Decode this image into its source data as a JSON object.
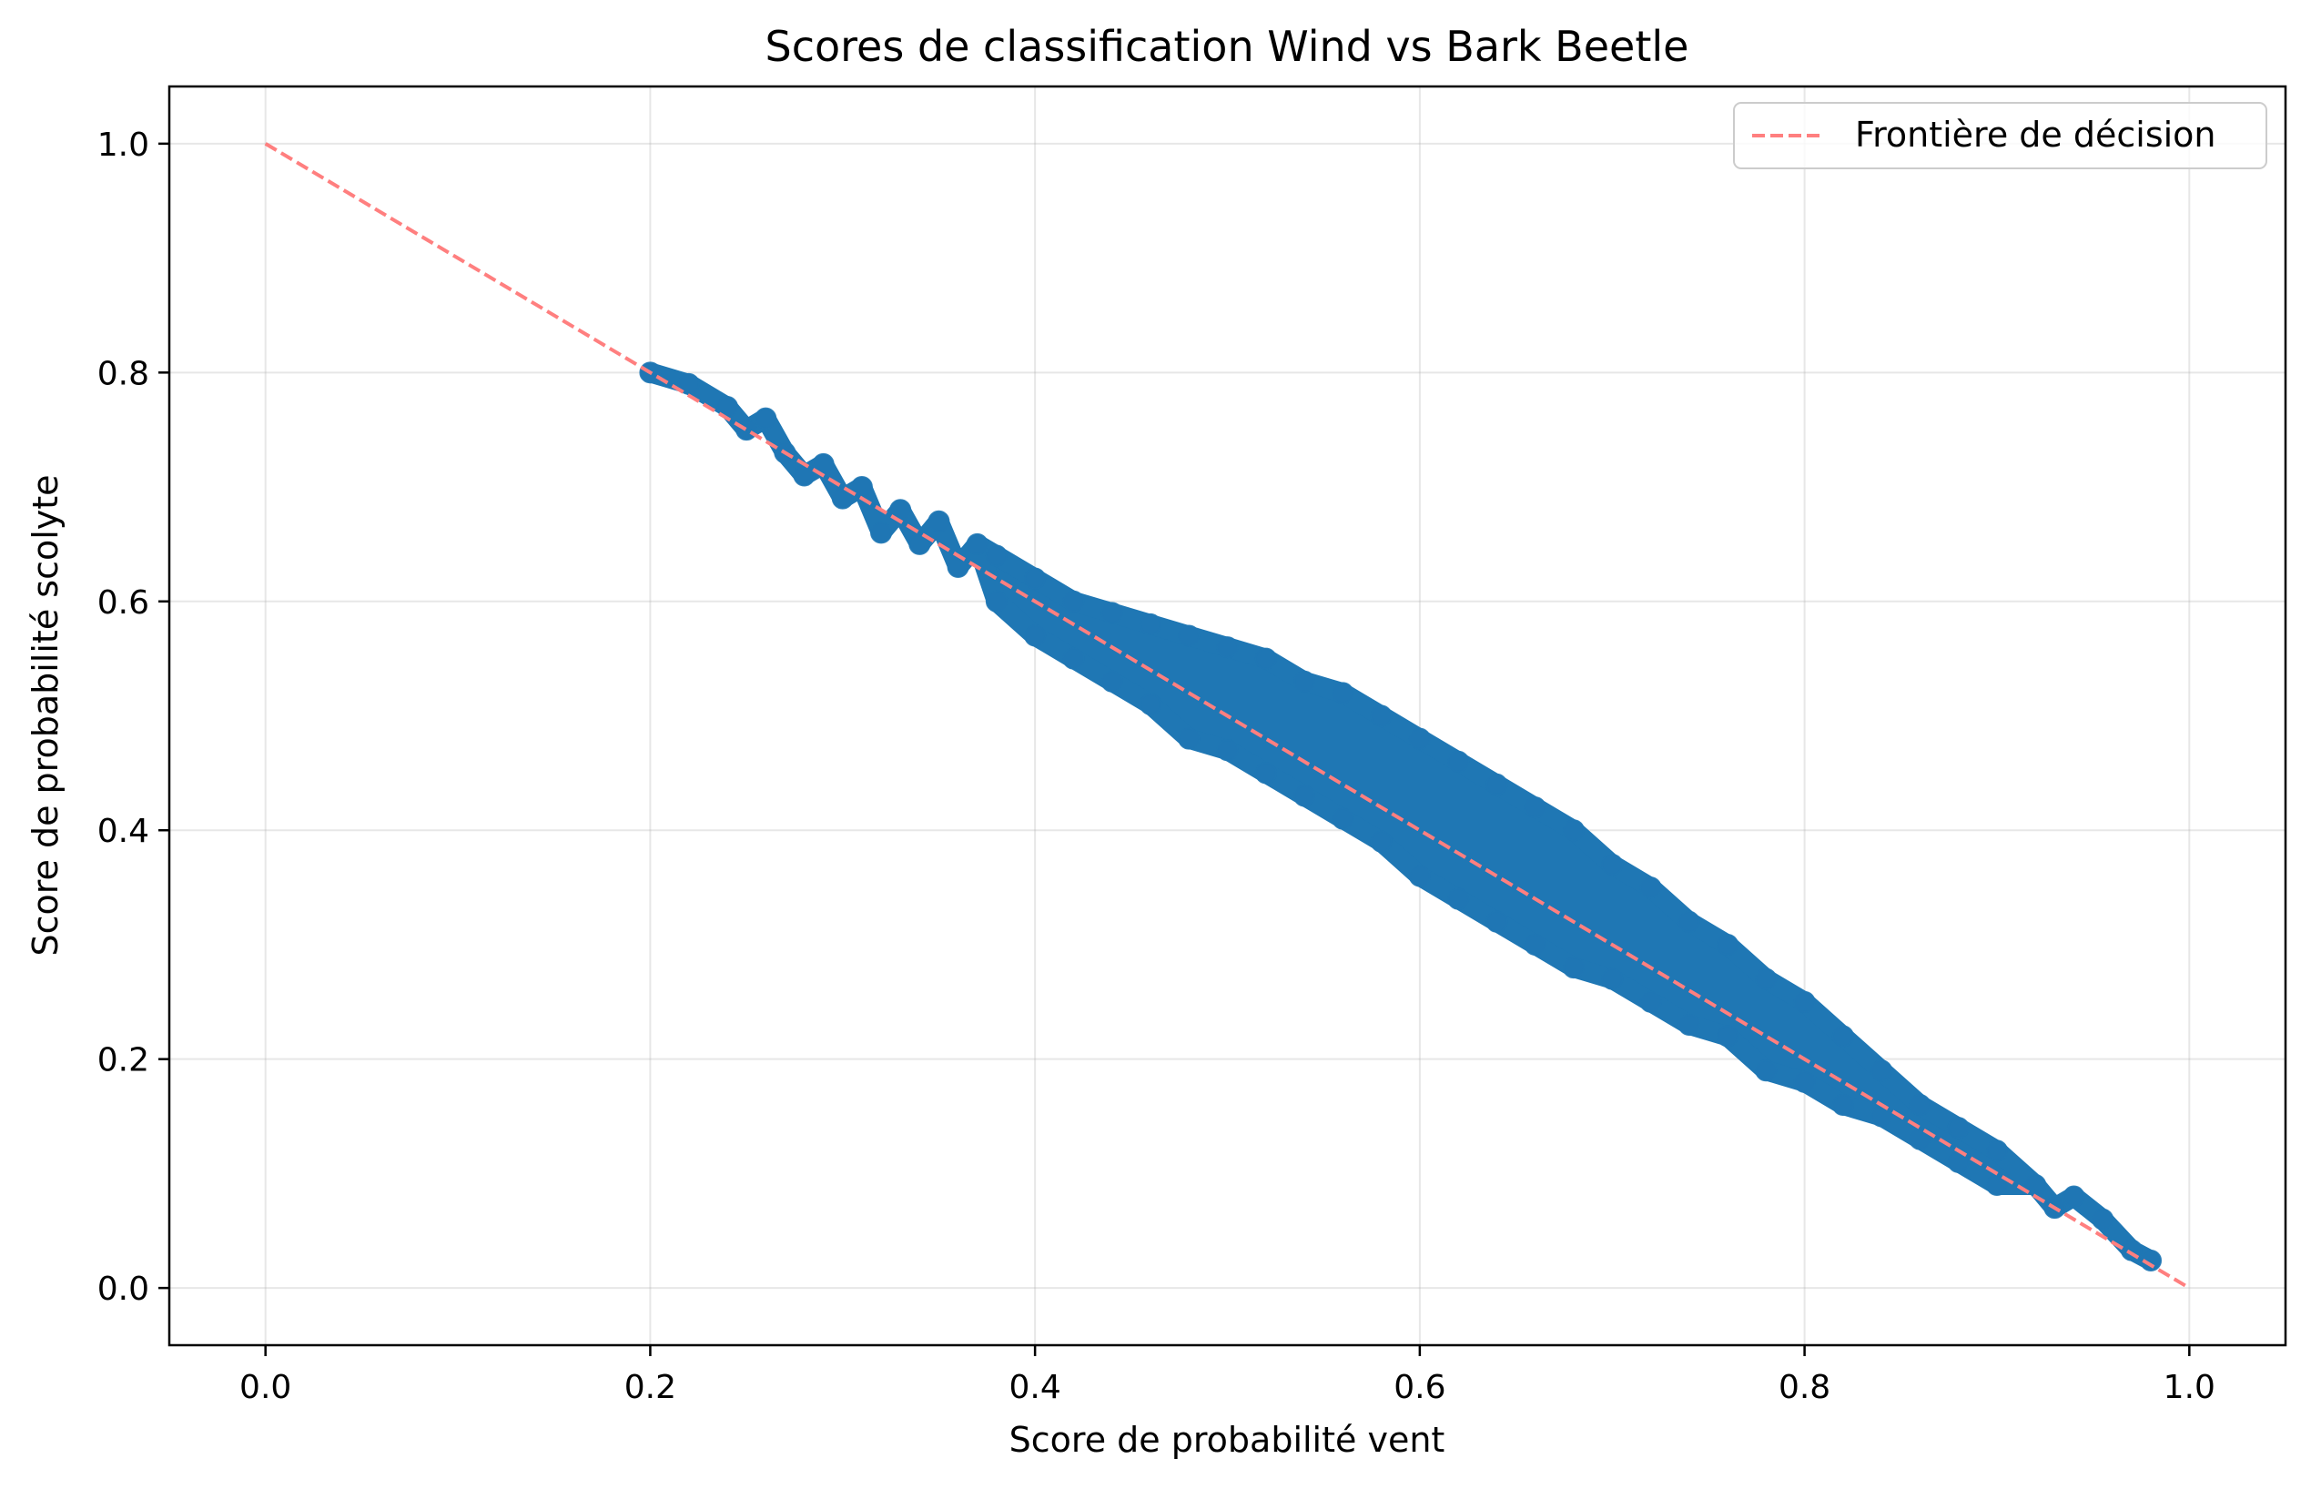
{
  "chart_data": {
    "type": "scatter",
    "title": "Scores de classification Wind vs Bark Beetle",
    "xlabel": "Score de probabilité vent",
    "ylabel": "Score de probabilité scolyte",
    "xlim": [
      -0.05,
      1.05
    ],
    "ylim": [
      -0.05,
      1.05
    ],
    "xticks": [
      0.0,
      0.2,
      0.4,
      0.6,
      0.8,
      1.0
    ],
    "xtick_labels": [
      "0.0",
      "0.2",
      "0.4",
      "0.6",
      "0.8",
      "1.0"
    ],
    "yticks": [
      0.0,
      0.2,
      0.4,
      0.6,
      0.8,
      1.0
    ],
    "ytick_labels": [
      "0.0",
      "0.2",
      "0.4",
      "0.6",
      "0.8",
      "1.0"
    ],
    "grid": true,
    "legend_position": "top-right",
    "series": [
      {
        "kind": "scatter",
        "color": "#1f77b4",
        "alpha": 0.6,
        "points": [
          [
            0.2,
            0.8
          ],
          [
            0.22,
            0.79
          ],
          [
            0.24,
            0.77
          ],
          [
            0.25,
            0.75
          ],
          [
            0.26,
            0.76
          ],
          [
            0.27,
            0.73
          ],
          [
            0.28,
            0.71
          ],
          [
            0.29,
            0.72
          ],
          [
            0.3,
            0.69
          ],
          [
            0.31,
            0.7
          ],
          [
            0.32,
            0.66
          ],
          [
            0.33,
            0.68
          ],
          [
            0.34,
            0.65
          ],
          [
            0.35,
            0.67
          ],
          [
            0.36,
            0.63
          ],
          [
            0.37,
            0.65
          ],
          [
            0.38,
            0.6
          ],
          [
            0.38,
            0.64
          ],
          [
            0.4,
            0.62
          ],
          [
            0.4,
            0.57
          ],
          [
            0.42,
            0.6
          ],
          [
            0.42,
            0.55
          ],
          [
            0.44,
            0.59
          ],
          [
            0.44,
            0.53
          ],
          [
            0.46,
            0.58
          ],
          [
            0.46,
            0.51
          ],
          [
            0.48,
            0.57
          ],
          [
            0.48,
            0.48
          ],
          [
            0.5,
            0.56
          ],
          [
            0.5,
            0.47
          ],
          [
            0.52,
            0.55
          ],
          [
            0.52,
            0.45
          ],
          [
            0.54,
            0.53
          ],
          [
            0.54,
            0.43
          ],
          [
            0.56,
            0.52
          ],
          [
            0.56,
            0.41
          ],
          [
            0.58,
            0.5
          ],
          [
            0.58,
            0.39
          ],
          [
            0.6,
            0.48
          ],
          [
            0.6,
            0.36
          ],
          [
            0.62,
            0.46
          ],
          [
            0.62,
            0.34
          ],
          [
            0.64,
            0.44
          ],
          [
            0.64,
            0.32
          ],
          [
            0.66,
            0.42
          ],
          [
            0.66,
            0.3
          ],
          [
            0.68,
            0.4
          ],
          [
            0.68,
            0.28
          ],
          [
            0.7,
            0.37
          ],
          [
            0.7,
            0.27
          ],
          [
            0.72,
            0.35
          ],
          [
            0.72,
            0.25
          ],
          [
            0.74,
            0.32
          ],
          [
            0.74,
            0.23
          ],
          [
            0.76,
            0.3
          ],
          [
            0.76,
            0.22
          ],
          [
            0.78,
            0.27
          ],
          [
            0.78,
            0.19
          ],
          [
            0.8,
            0.25
          ],
          [
            0.8,
            0.18
          ],
          [
            0.82,
            0.22
          ],
          [
            0.82,
            0.16
          ],
          [
            0.84,
            0.19
          ],
          [
            0.84,
            0.15
          ],
          [
            0.86,
            0.16
          ],
          [
            0.86,
            0.13
          ],
          [
            0.88,
            0.14
          ],
          [
            0.88,
            0.11
          ],
          [
            0.9,
            0.12
          ],
          [
            0.9,
            0.09
          ],
          [
            0.92,
            0.09
          ],
          [
            0.93,
            0.07
          ],
          [
            0.94,
            0.08
          ],
          [
            0.955,
            0.06
          ],
          [
            0.97,
            0.033
          ],
          [
            0.98,
            0.024
          ]
        ]
      },
      {
        "kind": "line",
        "name": "Frontière de décision",
        "color": "#ff7f7f",
        "dash": "dashed",
        "x": [
          0.0,
          1.0
        ],
        "y": [
          1.0,
          0.0
        ]
      }
    ]
  }
}
